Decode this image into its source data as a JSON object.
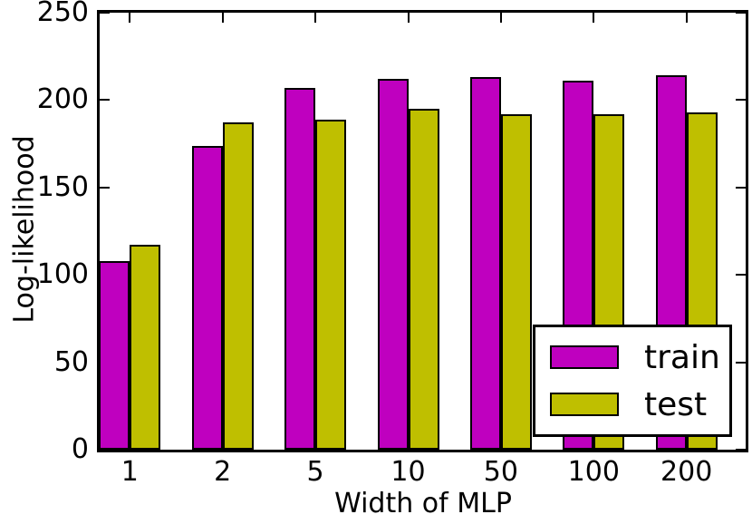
{
  "chart_data": {
    "type": "bar",
    "categories": [
      "1",
      "2",
      "5",
      "10",
      "50",
      "100",
      "200"
    ],
    "series": [
      {
        "name": "train",
        "color": "#bf00bf",
        "values": [
          108,
          174,
          207,
          212,
          213,
          211,
          214
        ]
      },
      {
        "name": "test",
        "color": "#bfbf00",
        "values": [
          117,
          187,
          189,
          195,
          192,
          192,
          193
        ]
      }
    ],
    "title": "",
    "xlabel": "Width of MLP",
    "ylabel": "Log-likelihood",
    "ylim": [
      0,
      250
    ],
    "yticks": [
      0,
      50,
      100,
      150,
      200,
      250
    ],
    "grid": false,
    "legend_position": "lower right",
    "bar_edge_color": "#000000",
    "axis_color": "#000000",
    "background_color": "#ffffff"
  }
}
